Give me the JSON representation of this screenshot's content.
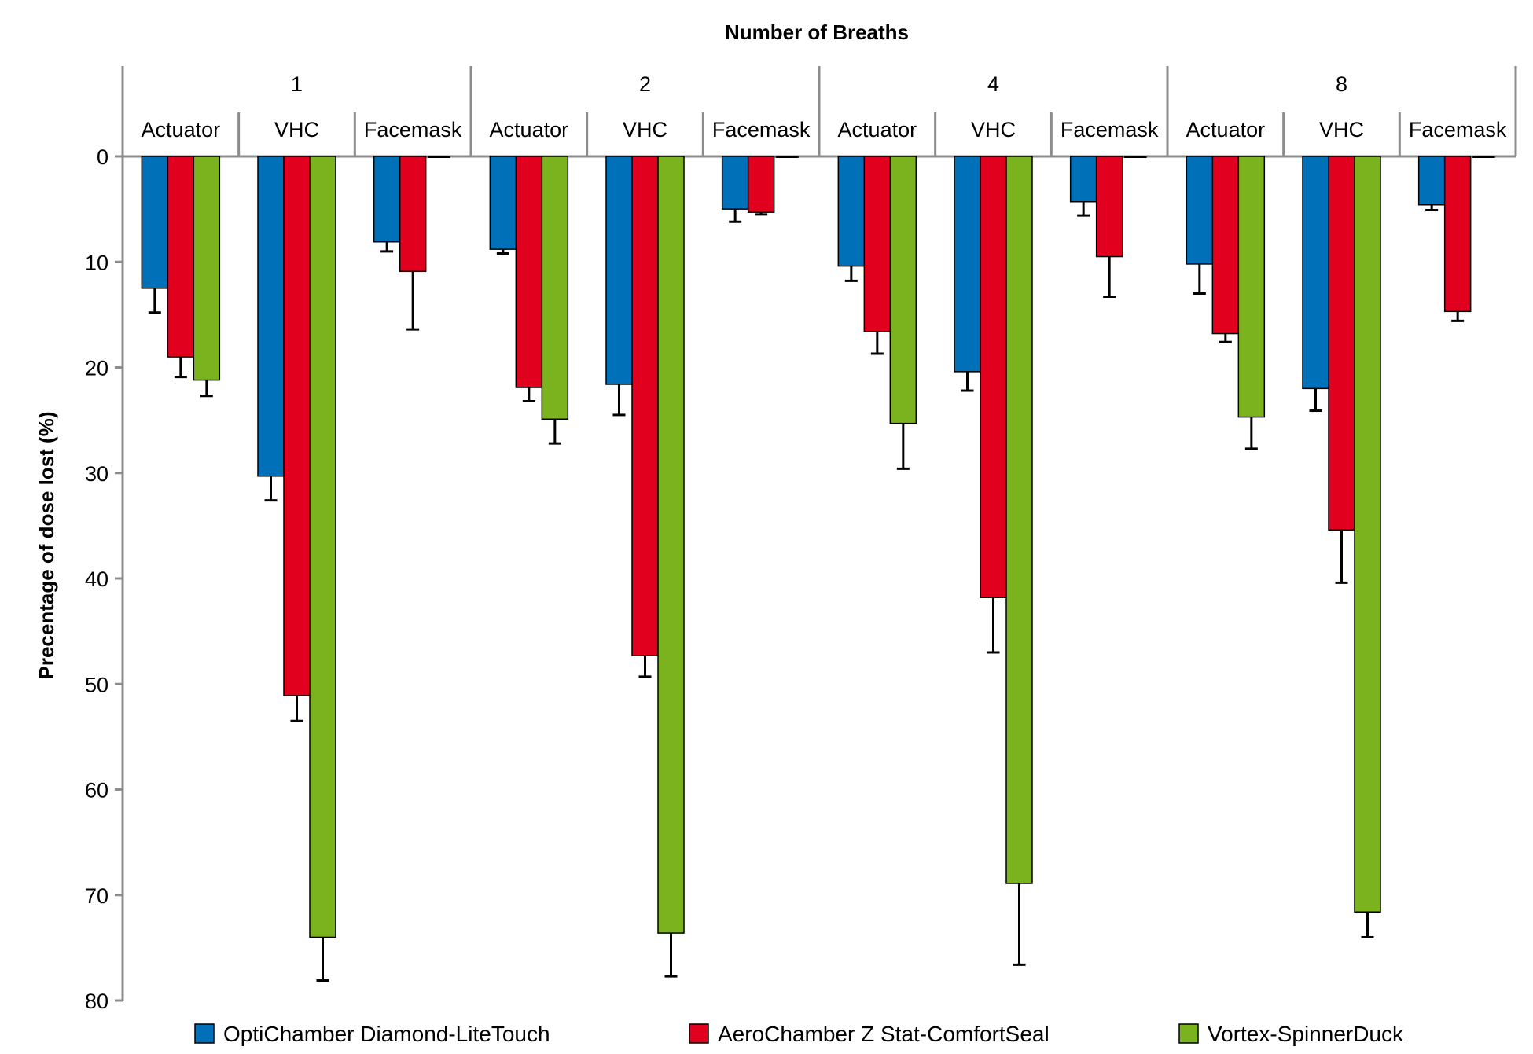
{
  "chart_data": {
    "type": "bar",
    "orientation": "vertical-downward",
    "title": "Number of Breaths",
    "ylabel": "Precentage of dose lost (%)",
    "ylim": [
      0,
      80
    ],
    "yticks": [
      0,
      10,
      20,
      30,
      40,
      50,
      60,
      70,
      80
    ],
    "grid": false,
    "legend_position": "bottom",
    "groups": [
      {
        "label": "1",
        "categories": [
          "Actuator",
          "VHC",
          "Facemask"
        ]
      },
      {
        "label": "2",
        "categories": [
          "Actuator",
          "VHC",
          "Facemask"
        ]
      },
      {
        "label": "4",
        "categories": [
          "Actuator",
          "VHC",
          "Facemask"
        ]
      },
      {
        "label": "8",
        "categories": [
          "Actuator",
          "VHC",
          "Facemask"
        ]
      }
    ],
    "series": [
      {
        "name": "OptiChamber Diamond-LiteTouch",
        "color": "#0070b8",
        "values": [
          12.5,
          30.3,
          8.1,
          8.8,
          21.6,
          5.0,
          10.4,
          20.4,
          4.3,
          10.2,
          22.0,
          4.6
        ],
        "errors": [
          2.3,
          2.3,
          0.9,
          0.4,
          2.9,
          1.2,
          1.4,
          1.8,
          1.3,
          2.8,
          2.1,
          0.5
        ]
      },
      {
        "name": "AeroChamber Z Stat-ComfortSeal",
        "color": "#e1001e",
        "values": [
          19.0,
          51.1,
          10.9,
          21.9,
          47.3,
          5.3,
          16.6,
          41.8,
          9.5,
          16.8,
          35.4,
          14.7
        ],
        "errors": [
          1.9,
          2.4,
          5.5,
          1.3,
          2.0,
          0.2,
          2.1,
          5.2,
          3.8,
          0.8,
          5.0,
          0.9
        ]
      },
      {
        "name": "Vortex-SpinnerDuck",
        "color": "#7ab31e",
        "values": [
          21.2,
          74.0,
          0.0,
          24.9,
          73.6,
          0.0,
          25.3,
          68.9,
          0.0,
          24.7,
          71.6,
          0.0
        ],
        "errors": [
          1.5,
          4.1,
          0.0,
          2.3,
          4.1,
          0.0,
          4.3,
          7.7,
          0.0,
          3.0,
          2.4,
          0.0
        ]
      }
    ]
  }
}
